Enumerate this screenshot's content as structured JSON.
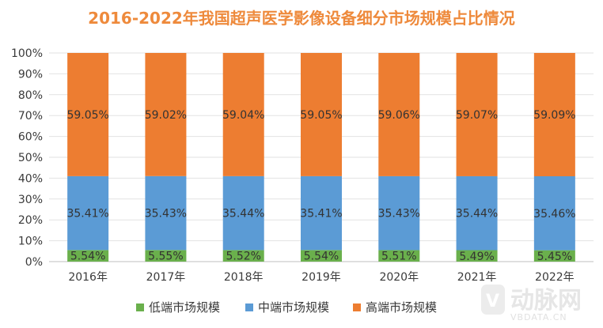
{
  "chart_data": {
    "type": "bar",
    "stacked": true,
    "title": "2016-2022年我国超声医学影像设备细分市场规模占比情况",
    "categories": [
      "2016年",
      "2017年",
      "2018年",
      "2019年",
      "2020年",
      "2021年",
      "2022年"
    ],
    "ylim": [
      0,
      100
    ],
    "yticks": [
      "0%",
      "10%",
      "20%",
      "30%",
      "40%",
      "50%",
      "60%",
      "70%",
      "80%",
      "90%",
      "100%"
    ],
    "grid": true,
    "legend_position": "bottom",
    "series": [
      {
        "name": "低端市场规模",
        "color": "#6ab04c",
        "values": [
          5.54,
          5.55,
          5.52,
          5.54,
          5.51,
          5.49,
          5.45
        ],
        "labels": [
          "5.54%",
          "5.55%",
          "5.52%",
          "5.54%",
          "5.51%",
          "5.49%",
          "5.45%"
        ]
      },
      {
        "name": "中端市场规模",
        "color": "#5b9bd5",
        "values": [
          35.41,
          35.43,
          35.44,
          35.41,
          35.43,
          35.44,
          35.46
        ],
        "labels": [
          "35.41%",
          "35.43%",
          "35.44%",
          "35.41%",
          "35.43%",
          "35.44%",
          "35.46%"
        ]
      },
      {
        "name": "高端市场规模",
        "color": "#ed7d31",
        "values": [
          59.05,
          59.02,
          59.04,
          59.05,
          59.06,
          59.07,
          59.09
        ],
        "labels": [
          "59.05%",
          "59.02%",
          "59.04%",
          "59.05%",
          "59.06%",
          "59.07%",
          "59.09%"
        ]
      }
    ]
  },
  "watermark": {
    "text": "动脉网",
    "subtext": "VBDATA.CN"
  }
}
